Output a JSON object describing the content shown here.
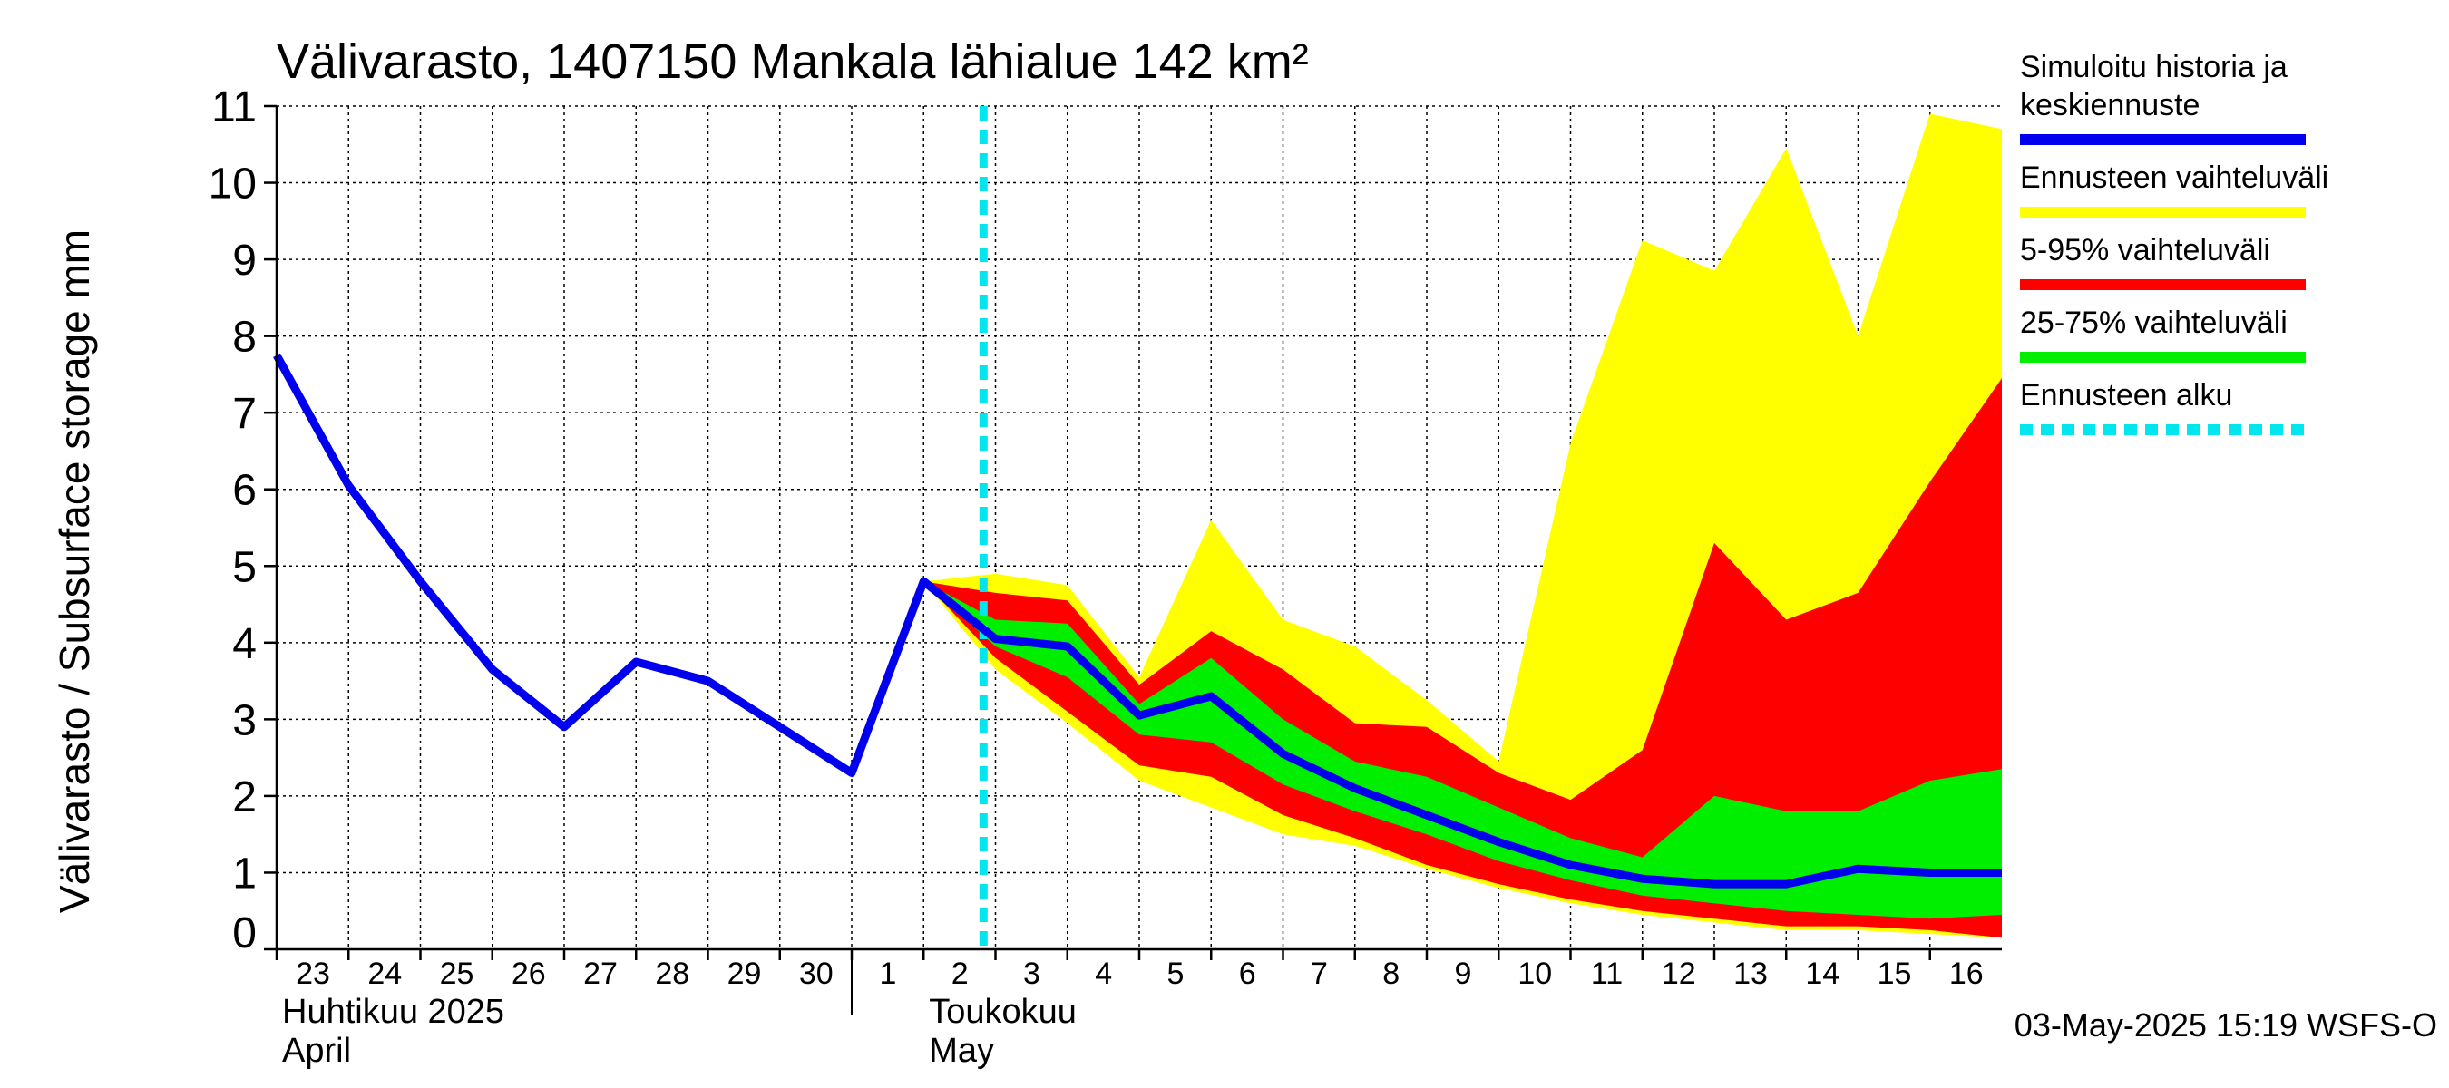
{
  "chart_data": {
    "type": "area",
    "title": "Välivarasto, 1407150 Mankala lähialue 142 km²",
    "ylabel": "Välivarasto / Subsurface storage  mm",
    "ylim": [
      0,
      11
    ],
    "yticks": [
      "0",
      "1",
      "2",
      "3",
      "4",
      "5",
      "6",
      "7",
      "8",
      "9",
      "10",
      "11"
    ],
    "x_start": "2025-04-23",
    "x_end": "2025-05-17",
    "day_labels": [
      {
        "date": "2025-04-23",
        "label": "23"
      },
      {
        "date": "2025-04-24",
        "label": "24"
      },
      {
        "date": "2025-04-25",
        "label": "25"
      },
      {
        "date": "2025-04-26",
        "label": "26"
      },
      {
        "date": "2025-04-27",
        "label": "27"
      },
      {
        "date": "2025-04-28",
        "label": "28"
      },
      {
        "date": "2025-04-29",
        "label": "29"
      },
      {
        "date": "2025-04-30",
        "label": "30"
      },
      {
        "date": "2025-05-01",
        "label": "1"
      },
      {
        "date": "2025-05-02",
        "label": "2"
      },
      {
        "date": "2025-05-03",
        "label": "3"
      },
      {
        "date": "2025-05-04",
        "label": "4"
      },
      {
        "date": "2025-05-05",
        "label": "5"
      },
      {
        "date": "2025-05-06",
        "label": "6"
      },
      {
        "date": "2025-05-07",
        "label": "7"
      },
      {
        "date": "2025-05-08",
        "label": "8"
      },
      {
        "date": "2025-05-09",
        "label": "9"
      },
      {
        "date": "2025-05-10",
        "label": "10"
      },
      {
        "date": "2025-05-11",
        "label": "11"
      },
      {
        "date": "2025-05-12",
        "label": "12"
      },
      {
        "date": "2025-05-13",
        "label": "13"
      },
      {
        "date": "2025-05-14",
        "label": "14"
      },
      {
        "date": "2025-05-15",
        "label": "15"
      },
      {
        "date": "2025-05-16",
        "label": "16"
      }
    ],
    "month_labels": [
      {
        "date": "2025-04-23",
        "fi": "Huhtikuu  2025",
        "en": "April"
      },
      {
        "date": "2025-05-02",
        "fi": "Toukokuu",
        "en": "May"
      }
    ],
    "month_boundary": "2025-05-01",
    "forecast_start": "2025-05-02T20:00",
    "history": [
      {
        "x": "2025-04-23",
        "y": 7.75
      },
      {
        "x": "2025-04-24",
        "y": 6.05
      },
      {
        "x": "2025-04-25",
        "y": 4.8
      },
      {
        "x": "2025-04-26",
        "y": 3.65
      },
      {
        "x": "2025-04-27",
        "y": 2.9
      },
      {
        "x": "2025-04-28",
        "y": 3.75
      },
      {
        "x": "2025-04-29",
        "y": 3.5
      },
      {
        "x": "2025-04-30",
        "y": 2.9
      },
      {
        "x": "2025-05-01",
        "y": 2.3
      },
      {
        "x": "2025-05-02",
        "y": 4.8
      }
    ],
    "forecast_dates": [
      "2025-05-02",
      "2025-05-03",
      "2025-05-04",
      "2025-05-05",
      "2025-05-06",
      "2025-05-07",
      "2025-05-08",
      "2025-05-09",
      "2025-05-10",
      "2025-05-11",
      "2025-05-12",
      "2025-05-13",
      "2025-05-14",
      "2025-05-15",
      "2025-05-16",
      "2025-05-17"
    ],
    "median": [
      4.8,
      4.05,
      3.95,
      3.05,
      3.3,
      2.55,
      2.1,
      1.75,
      1.4,
      1.1,
      0.92,
      0.85,
      0.85,
      1.05,
      1.0,
      1.0
    ],
    "range_upper": [
      4.8,
      4.9,
      4.75,
      3.55,
      5.6,
      4.3,
      3.95,
      3.25,
      2.45,
      6.6,
      9.25,
      8.85,
      10.45,
      8.0,
      10.9,
      10.7
    ],
    "range_lower": [
      4.8,
      3.65,
      2.95,
      2.2,
      1.85,
      1.5,
      1.35,
      1.05,
      0.8,
      0.6,
      0.45,
      0.35,
      0.25,
      0.25,
      0.2,
      0.15
    ],
    "p95": [
      4.8,
      4.65,
      4.55,
      3.45,
      4.15,
      3.65,
      2.95,
      2.9,
      2.3,
      1.95,
      2.6,
      5.3,
      4.3,
      4.65,
      6.1,
      7.45
    ],
    "p5": [
      4.8,
      3.8,
      3.1,
      2.4,
      2.25,
      1.75,
      1.45,
      1.1,
      0.85,
      0.65,
      0.5,
      0.4,
      0.3,
      0.3,
      0.25,
      0.15
    ],
    "p75": [
      4.8,
      4.3,
      4.25,
      3.2,
      3.8,
      3.0,
      2.45,
      2.25,
      1.85,
      1.45,
      1.2,
      2.0,
      1.8,
      1.8,
      2.2,
      2.35
    ],
    "p25": [
      4.8,
      3.95,
      3.55,
      2.8,
      2.7,
      2.15,
      1.8,
      1.5,
      1.15,
      0.9,
      0.7,
      0.6,
      0.5,
      0.45,
      0.4,
      0.45
    ],
    "legend": [
      {
        "label": "Simuloitu historia ja keskiennuste",
        "lines": [
          "Simuloitu historia ja",
          "keskiennuste"
        ],
        "color": "#0000ee",
        "style": "solid"
      },
      {
        "label": "Ennusteen vaihteluväli",
        "lines": [
          "Ennusteen vaihteluväli"
        ],
        "color": "#ffff00",
        "style": "solid"
      },
      {
        "label": "5-95% vaihteluväli",
        "lines": [
          "5-95% vaihteluväli"
        ],
        "color": "#ff0000",
        "style": "solid"
      },
      {
        "label": "25-75% vaihteluväli",
        "lines": [
          "25-75% vaihteluväli"
        ],
        "color": "#00ee00",
        "style": "solid"
      },
      {
        "label": "Ennusteen alku",
        "lines": [
          "Ennusteen alku"
        ],
        "color": "#00e5ee",
        "style": "dashed"
      }
    ],
    "legend_position": "right",
    "grid": true,
    "colors": {
      "median": "#0000ee",
      "range": "#ffff00",
      "p5_95": "#ff0000",
      "p25_75": "#00ee00",
      "forecast_start": "#00e5ee"
    },
    "footer": "03-May-2025 15:19 WSFS-O"
  }
}
